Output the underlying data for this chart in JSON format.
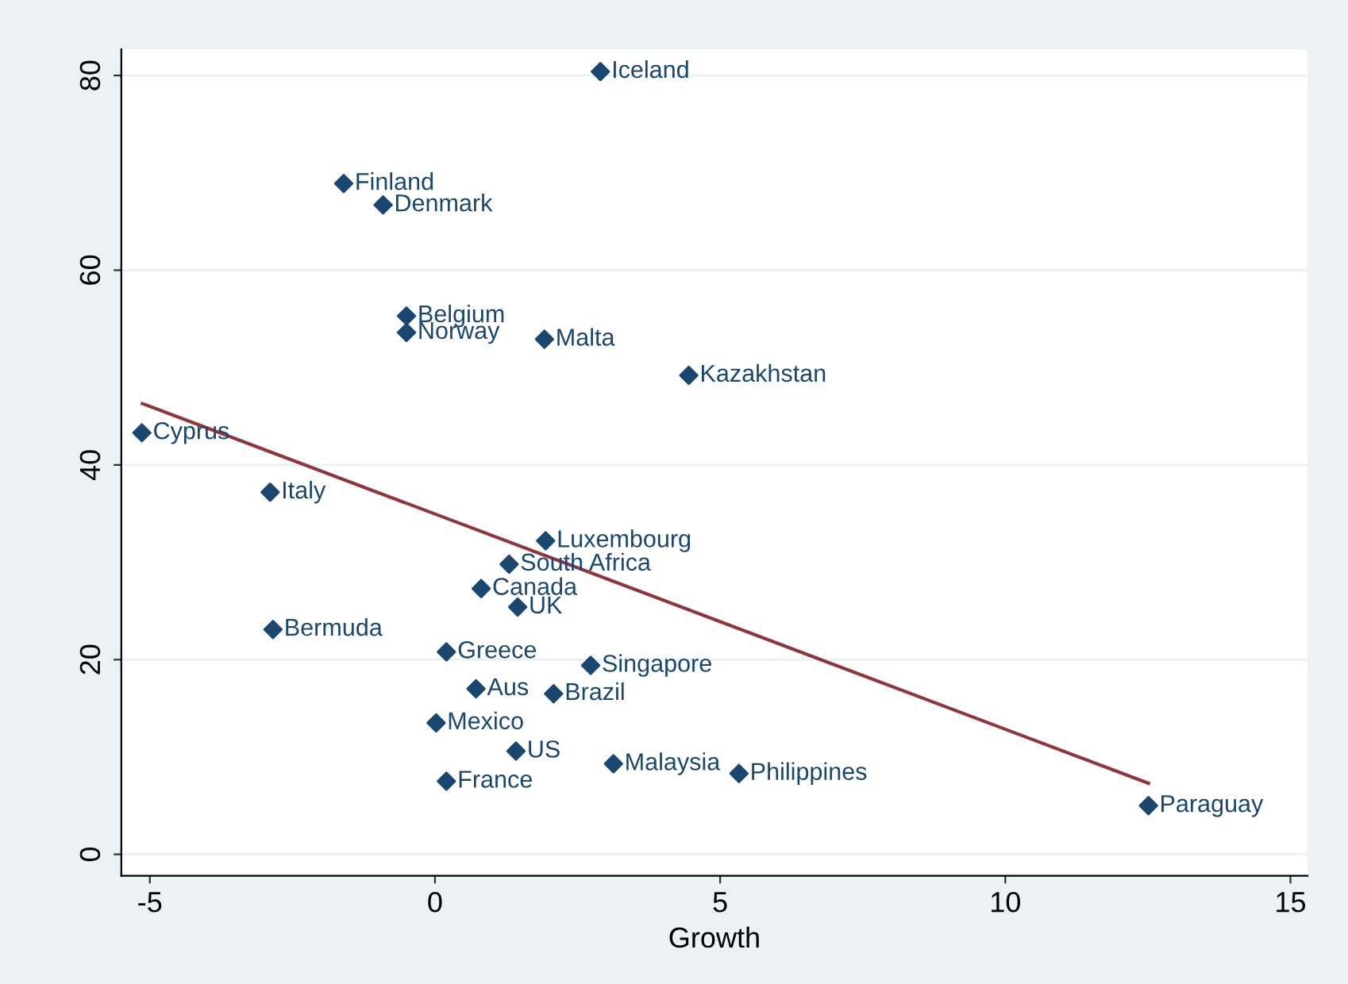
{
  "chart_data": {
    "type": "scatter",
    "xlabel": "Growth",
    "xlim": [
      -5.5,
      15.3
    ],
    "ylim": [
      -2.2,
      82.7
    ],
    "xticks": [
      -5,
      0,
      5,
      10,
      15
    ],
    "yticks": [
      0,
      20,
      40,
      60,
      80
    ],
    "grid": "y",
    "series": [
      {
        "marker": "diamond",
        "color": "#1a476f",
        "x": [
          2.9,
          -1.6,
          -0.91,
          -0.5,
          -0.5,
          1.92,
          4.45,
          -5.14,
          -2.89,
          1.94,
          1.3,
          0.81,
          1.45,
          -2.84,
          0.2,
          2.73,
          0.72,
          2.08,
          0.02,
          1.42,
          3.13,
          5.33,
          0.2,
          12.51
        ],
        "values": [
          80.4,
          68.9,
          66.7,
          55.3,
          53.6,
          52.9,
          49.2,
          43.3,
          37.2,
          32.2,
          29.8,
          27.3,
          25.4,
          23.1,
          20.8,
          19.4,
          17.0,
          16.5,
          13.5,
          10.6,
          9.3,
          8.3,
          7.5,
          5.0
        ]
      },
      {
        "type": "line",
        "color": "#90353b",
        "x": [
          -5.13,
          12.51
        ],
        "values": [
          46.3,
          7.3
        ]
      }
    ],
    "annotations": [
      {
        "text": "Iceland",
        "x": 2.9,
        "y": 80.4
      },
      {
        "text": "Finland",
        "x": -1.6,
        "y": 68.9
      },
      {
        "text": "Denmark",
        "x": -0.91,
        "y": 66.7
      },
      {
        "text": "Belgium",
        "x": -0.5,
        "y": 55.3
      },
      {
        "text": "Norway",
        "x": -0.5,
        "y": 53.6
      },
      {
        "text": "Malta",
        "x": 1.92,
        "y": 52.9
      },
      {
        "text": "Kazakhstan",
        "x": 4.45,
        "y": 49.2
      },
      {
        "text": "Cyprus",
        "x": -5.14,
        "y": 43.3
      },
      {
        "text": "Italy",
        "x": -2.89,
        "y": 37.2
      },
      {
        "text": "Luxembourg",
        "x": 1.94,
        "y": 32.2
      },
      {
        "text": "South Africa",
        "x": 1.3,
        "y": 29.8
      },
      {
        "text": "Canada",
        "x": 0.81,
        "y": 27.3
      },
      {
        "text": "UK",
        "x": 1.45,
        "y": 25.4
      },
      {
        "text": "Bermuda",
        "x": -2.84,
        "y": 23.1
      },
      {
        "text": "Greece",
        "x": 0.2,
        "y": 20.8
      },
      {
        "text": "Singapore",
        "x": 2.73,
        "y": 19.4
      },
      {
        "text": "Aus",
        "x": 0.72,
        "y": 17.0
      },
      {
        "text": "Brazil",
        "x": 2.08,
        "y": 16.5
      },
      {
        "text": "Mexico",
        "x": 0.02,
        "y": 13.5
      },
      {
        "text": "US",
        "x": 1.42,
        "y": 10.6
      },
      {
        "text": "Malaysia",
        "x": 3.13,
        "y": 9.3
      },
      {
        "text": "Philippines",
        "x": 5.33,
        "y": 8.3
      },
      {
        "text": "France",
        "x": 0.2,
        "y": 7.5
      },
      {
        "text": "Paraguay",
        "x": 12.51,
        "y": 5.0
      }
    ]
  }
}
